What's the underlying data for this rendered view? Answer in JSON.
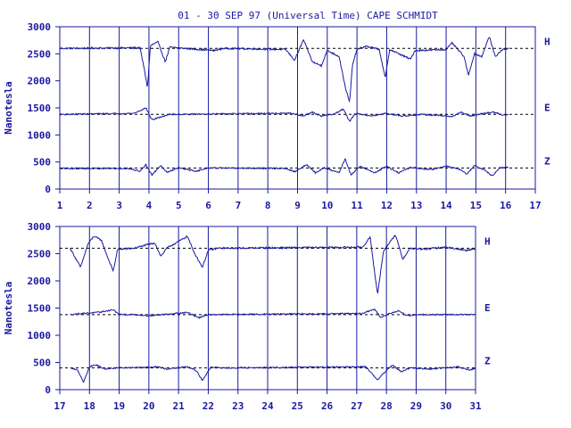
{
  "chart_data": [
    {
      "type": "line",
      "title": "01 - 30 SEP 97 (Universal Time) CAPE SCHMIDT",
      "ylabel": "Nanotesla",
      "xlim": [
        1,
        17
      ],
      "ylim": [
        0,
        3000
      ],
      "x_ticks": [
        "1",
        "2",
        "3",
        "4",
        "5",
        "6",
        "7",
        "8",
        "9",
        "10",
        "11",
        "12",
        "13",
        "14",
        "15",
        "16",
        "17"
      ],
      "y_ticks": [
        "0",
        "500",
        "1000",
        "1500",
        "2000",
        "2500",
        "3000"
      ],
      "data_end": 16.1,
      "grid": "vertical-day-lines",
      "series": [
        {
          "name": "H",
          "baseline": 2600,
          "noise": 15,
          "points": [
            [
              1,
              2600
            ],
            [
              3.7,
              2610
            ],
            [
              3.85,
              2200
            ],
            [
              3.95,
              1870
            ],
            [
              4.05,
              2650
            ],
            [
              4.3,
              2720
            ],
            [
              4.55,
              2350
            ],
            [
              4.7,
              2620
            ],
            [
              6.2,
              2560
            ],
            [
              6.5,
              2600
            ],
            [
              8.6,
              2580
            ],
            [
              8.9,
              2380
            ],
            [
              9.2,
              2760
            ],
            [
              9.5,
              2350
            ],
            [
              9.8,
              2280
            ],
            [
              10.0,
              2560
            ],
            [
              10.4,
              2450
            ],
            [
              10.6,
              1900
            ],
            [
              10.75,
              1600
            ],
            [
              10.85,
              2300
            ],
            [
              11.0,
              2580
            ],
            [
              11.3,
              2640
            ],
            [
              11.75,
              2580
            ],
            [
              11.95,
              2050
            ],
            [
              12.1,
              2580
            ],
            [
              12.8,
              2400
            ],
            [
              12.95,
              2560
            ],
            [
              14.0,
              2580
            ],
            [
              14.2,
              2700
            ],
            [
              14.6,
              2450
            ],
            [
              14.75,
              2100
            ],
            [
              14.95,
              2500
            ],
            [
              15.2,
              2450
            ],
            [
              15.45,
              2820
            ],
            [
              15.65,
              2450
            ],
            [
              15.9,
              2580
            ],
            [
              16.1,
              2600
            ]
          ]
        },
        {
          "name": "E",
          "baseline": 1380,
          "noise": 12,
          "points": [
            [
              1,
              1380
            ],
            [
              3.5,
              1400
            ],
            [
              3.9,
              1500
            ],
            [
              4.1,
              1280
            ],
            [
              4.5,
              1350
            ],
            [
              4.7,
              1380
            ],
            [
              8.8,
              1400
            ],
            [
              9.2,
              1350
            ],
            [
              9.5,
              1420
            ],
            [
              9.8,
              1350
            ],
            [
              10.2,
              1380
            ],
            [
              10.55,
              1480
            ],
            [
              10.75,
              1250
            ],
            [
              10.95,
              1400
            ],
            [
              11.5,
              1350
            ],
            [
              12.0,
              1400
            ],
            [
              12.5,
              1350
            ],
            [
              13.2,
              1380
            ],
            [
              14.2,
              1340
            ],
            [
              14.5,
              1420
            ],
            [
              14.8,
              1350
            ],
            [
              15.3,
              1400
            ],
            [
              15.6,
              1420
            ],
            [
              15.9,
              1370
            ],
            [
              16.1,
              1380
            ]
          ]
        },
        {
          "name": "Z",
          "baseline": 390,
          "noise": 12,
          "points": [
            [
              1,
              380
            ],
            [
              3.3,
              380
            ],
            [
              3.7,
              330
            ],
            [
              3.9,
              450
            ],
            [
              4.1,
              260
            ],
            [
              4.4,
              440
            ],
            [
              4.6,
              310
            ],
            [
              5.0,
              390
            ],
            [
              5.6,
              330
            ],
            [
              6.0,
              390
            ],
            [
              8.6,
              380
            ],
            [
              8.9,
              320
            ],
            [
              9.3,
              450
            ],
            [
              9.6,
              300
            ],
            [
              9.9,
              390
            ],
            [
              10.4,
              300
            ],
            [
              10.6,
              560
            ],
            [
              10.8,
              260
            ],
            [
              11.1,
              420
            ],
            [
              11.6,
              300
            ],
            [
              12.0,
              420
            ],
            [
              12.4,
              300
            ],
            [
              12.8,
              400
            ],
            [
              13.5,
              360
            ],
            [
              14.0,
              420
            ],
            [
              14.4,
              380
            ],
            [
              14.7,
              280
            ],
            [
              14.95,
              430
            ],
            [
              15.3,
              350
            ],
            [
              15.55,
              240
            ],
            [
              15.8,
              390
            ],
            [
              16.1,
              400
            ]
          ]
        }
      ]
    },
    {
      "type": "line",
      "title": "",
      "ylabel": "Nanotesla",
      "xlim": [
        17,
        31
      ],
      "ylim": [
        0,
        3000
      ],
      "x_ticks": [
        "17",
        "18",
        "19",
        "20",
        "21",
        "22",
        "23",
        "24",
        "25",
        "26",
        "27",
        "28",
        "29",
        "30",
        "31"
      ],
      "y_ticks": [
        "0",
        "500",
        "1000",
        "1500",
        "2000",
        "2500",
        "3000"
      ],
      "data_end": 31,
      "grid": "vertical-day-lines",
      "series": [
        {
          "name": "H",
          "baseline": 2600,
          "noise": 15,
          "points": [
            [
              17.35,
              2600
            ],
            [
              17.7,
              2250
            ],
            [
              17.95,
              2680
            ],
            [
              18.15,
              2820
            ],
            [
              18.4,
              2750
            ],
            [
              18.6,
              2450
            ],
            [
              18.8,
              2180
            ],
            [
              18.95,
              2580
            ],
            [
              19.5,
              2600
            ],
            [
              20.2,
              2700
            ],
            [
              20.4,
              2450
            ],
            [
              20.6,
              2600
            ],
            [
              21.3,
              2820
            ],
            [
              21.5,
              2550
            ],
            [
              21.8,
              2250
            ],
            [
              22.0,
              2560
            ],
            [
              22.3,
              2600
            ],
            [
              27.2,
              2620
            ],
            [
              27.45,
              2800
            ],
            [
              27.7,
              1750
            ],
            [
              27.9,
              2550
            ],
            [
              28.3,
              2850
            ],
            [
              28.55,
              2400
            ],
            [
              28.8,
              2600
            ],
            [
              29.2,
              2580
            ],
            [
              30.0,
              2620
            ],
            [
              30.7,
              2560
            ],
            [
              31,
              2600
            ]
          ]
        },
        {
          "name": "E",
          "baseline": 1380,
          "noise": 12,
          "points": [
            [
              17.35,
              1380
            ],
            [
              17.7,
              1400
            ],
            [
              18.3,
              1420
            ],
            [
              18.8,
              1470
            ],
            [
              19.0,
              1380
            ],
            [
              19.5,
              1380
            ],
            [
              20.0,
              1360
            ],
            [
              21.3,
              1420
            ],
            [
              21.7,
              1320
            ],
            [
              22.0,
              1380
            ],
            [
              27.2,
              1400
            ],
            [
              27.6,
              1480
            ],
            [
              27.8,
              1330
            ],
            [
              28.0,
              1380
            ],
            [
              28.4,
              1450
            ],
            [
              28.7,
              1360
            ],
            [
              29.0,
              1380
            ],
            [
              31,
              1380
            ]
          ]
        },
        {
          "name": "Z",
          "baseline": 400,
          "noise": 12,
          "points": [
            [
              17.35,
              400
            ],
            [
              17.6,
              360
            ],
            [
              17.8,
              140
            ],
            [
              18.0,
              420
            ],
            [
              18.2,
              460
            ],
            [
              18.5,
              380
            ],
            [
              18.9,
              400
            ],
            [
              20.3,
              420
            ],
            [
              20.6,
              380
            ],
            [
              21.3,
              420
            ],
            [
              21.6,
              350
            ],
            [
              21.8,
              170
            ],
            [
              22.1,
              420
            ],
            [
              22.4,
              400
            ],
            [
              27.3,
              420
            ],
            [
              27.5,
              300
            ],
            [
              27.7,
              180
            ],
            [
              27.9,
              300
            ],
            [
              28.2,
              450
            ],
            [
              28.5,
              330
            ],
            [
              28.8,
              400
            ],
            [
              29.5,
              380
            ],
            [
              30.4,
              420
            ],
            [
              30.8,
              360
            ],
            [
              31,
              400
            ]
          ]
        }
      ]
    }
  ]
}
